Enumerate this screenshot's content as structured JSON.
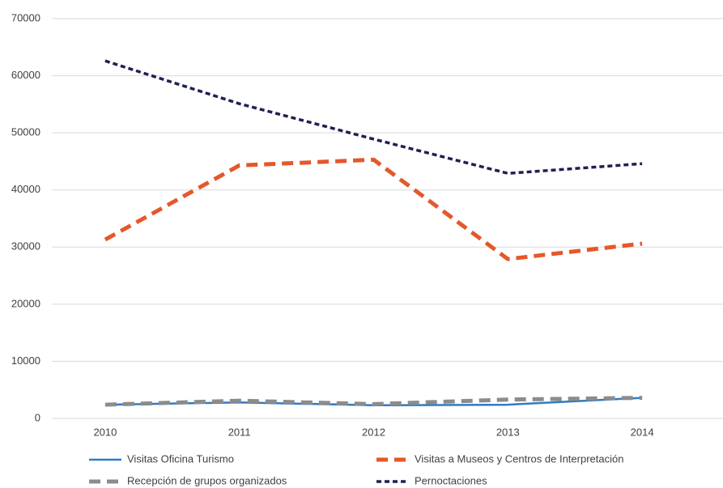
{
  "chart_data": {
    "type": "line",
    "categories": [
      "2010",
      "2011",
      "2012",
      "2013",
      "2014"
    ],
    "series": [
      {
        "name": "Visitas Oficina Turismo",
        "color": "#2f7bc4",
        "style": "solid",
        "values": [
          2400,
          2800,
          2300,
          2400,
          3600
        ]
      },
      {
        "name": "Visitas a Museos y Centros de Interpretación",
        "color": "#e4582b",
        "style": "dashed",
        "values": [
          31300,
          44300,
          45300,
          27900,
          30600
        ]
      },
      {
        "name": "Recepción de grupos organizados",
        "color": "#8c8c8c",
        "style": "dashed",
        "values": [
          2400,
          3100,
          2500,
          3300,
          3600
        ]
      },
      {
        "name": "Pernoctaciones",
        "color": "#1e2150",
        "style": "dotted",
        "values": [
          62600,
          55100,
          48900,
          42900,
          44600
        ]
      }
    ],
    "ylim": [
      0,
      70000
    ],
    "yticks": [
      0,
      10000,
      20000,
      30000,
      40000,
      50000,
      60000,
      70000
    ],
    "grid": true,
    "legend": "bottom"
  }
}
